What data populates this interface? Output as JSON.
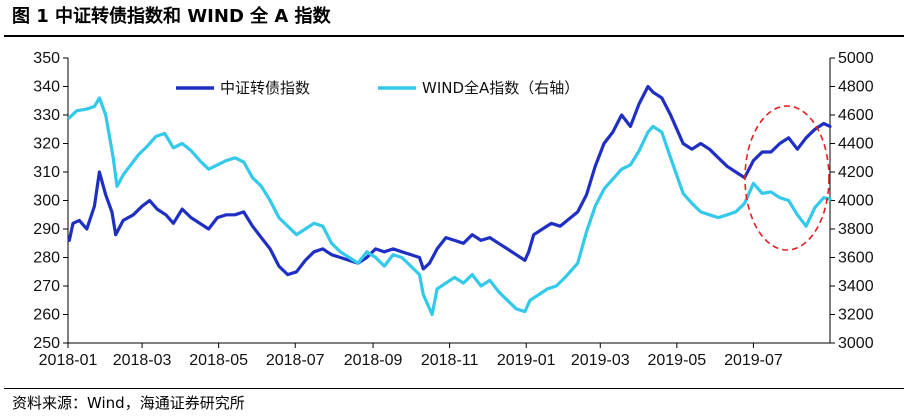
{
  "figure_title": "图 1  中证转债指数和 WIND 全 A 指数",
  "source_note": "资料来源：Wind，海通证券研究所",
  "chart_data": {
    "type": "line",
    "title": "图 1  中证转债指数和 WIND 全 A 指数",
    "x_range": [
      "2018-01-01",
      "2019-08-31"
    ],
    "x_ticks": [
      "2018-01",
      "2018-03",
      "2018-05",
      "2018-07",
      "2018-09",
      "2018-11",
      "2019-01",
      "2019-03",
      "2019-05",
      "2019-07"
    ],
    "y_left": {
      "range": [
        250,
        350
      ],
      "ticks": [
        250,
        260,
        270,
        280,
        290,
        300,
        310,
        320,
        330,
        340,
        350
      ]
    },
    "y_right": {
      "range": [
        3000,
        5000
      ],
      "ticks": [
        3000,
        3200,
        3400,
        3600,
        3800,
        4000,
        4200,
        4400,
        4600,
        4800,
        5000
      ]
    },
    "grid": false,
    "legend_position": "top",
    "annotation": "red dashed ellipse around 2019-07 to 2019-08",
    "series": [
      {
        "name": "中证转债指数",
        "axis": "left",
        "color": "#1f2fc4",
        "points": [
          [
            "2018-01-02",
            286
          ],
          [
            "2018-01-05",
            292
          ],
          [
            "2018-01-10",
            293
          ],
          [
            "2018-01-16",
            290
          ],
          [
            "2018-01-22",
            298
          ],
          [
            "2018-01-26",
            310
          ],
          [
            "2018-01-31",
            302
          ],
          [
            "2018-02-05",
            296
          ],
          [
            "2018-02-08",
            288
          ],
          [
            "2018-02-14",
            293
          ],
          [
            "2018-02-22",
            295
          ],
          [
            "2018-03-01",
            298
          ],
          [
            "2018-03-07",
            300
          ],
          [
            "2018-03-13",
            297
          ],
          [
            "2018-03-20",
            295
          ],
          [
            "2018-03-26",
            292
          ],
          [
            "2018-04-02",
            297
          ],
          [
            "2018-04-09",
            294
          ],
          [
            "2018-04-16",
            292
          ],
          [
            "2018-04-23",
            290
          ],
          [
            "2018-04-30",
            294
          ],
          [
            "2018-05-07",
            295
          ],
          [
            "2018-05-14",
            295
          ],
          [
            "2018-05-21",
            296
          ],
          [
            "2018-05-28",
            291
          ],
          [
            "2018-06-04",
            287
          ],
          [
            "2018-06-11",
            283
          ],
          [
            "2018-06-18",
            277
          ],
          [
            "2018-06-25",
            274
          ],
          [
            "2018-07-02",
            275
          ],
          [
            "2018-07-09",
            279
          ],
          [
            "2018-07-16",
            282
          ],
          [
            "2018-07-23",
            283
          ],
          [
            "2018-07-30",
            281
          ],
          [
            "2018-08-06",
            280
          ],
          [
            "2018-08-13",
            279
          ],
          [
            "2018-08-20",
            278
          ],
          [
            "2018-08-27",
            280
          ],
          [
            "2018-09-03",
            283
          ],
          [
            "2018-09-10",
            282
          ],
          [
            "2018-09-17",
            283
          ],
          [
            "2018-09-24",
            282
          ],
          [
            "2018-10-08",
            280
          ],
          [
            "2018-10-11",
            276
          ],
          [
            "2018-10-16",
            278
          ],
          [
            "2018-10-22",
            283
          ],
          [
            "2018-10-29",
            287
          ],
          [
            "2018-11-05",
            286
          ],
          [
            "2018-11-12",
            285
          ],
          [
            "2018-11-19",
            288
          ],
          [
            "2018-11-26",
            286
          ],
          [
            "2018-12-03",
            287
          ],
          [
            "2018-12-10",
            285
          ],
          [
            "2018-12-17",
            283
          ],
          [
            "2018-12-24",
            281
          ],
          [
            "2018-12-31",
            279
          ],
          [
            "2019-01-03",
            282
          ],
          [
            "2019-01-07",
            288
          ],
          [
            "2019-01-14",
            290
          ],
          [
            "2019-01-21",
            292
          ],
          [
            "2019-01-28",
            291
          ],
          [
            "2019-02-11",
            296
          ],
          [
            "2019-02-18",
            302
          ],
          [
            "2019-02-25",
            312
          ],
          [
            "2019-03-04",
            320
          ],
          [
            "2019-03-11",
            324
          ],
          [
            "2019-03-18",
            330
          ],
          [
            "2019-03-25",
            326
          ],
          [
            "2019-04-01",
            334
          ],
          [
            "2019-04-08",
            340
          ],
          [
            "2019-04-12",
            338
          ],
          [
            "2019-04-19",
            336
          ],
          [
            "2019-04-26",
            330
          ],
          [
            "2019-05-06",
            320
          ],
          [
            "2019-05-13",
            318
          ],
          [
            "2019-05-20",
            320
          ],
          [
            "2019-05-27",
            318
          ],
          [
            "2019-06-03",
            315
          ],
          [
            "2019-06-10",
            312
          ],
          [
            "2019-06-17",
            310
          ],
          [
            "2019-06-24",
            308
          ],
          [
            "2019-07-01",
            314
          ],
          [
            "2019-07-08",
            317
          ],
          [
            "2019-07-15",
            317
          ],
          [
            "2019-07-22",
            320
          ],
          [
            "2019-07-29",
            322
          ],
          [
            "2019-08-05",
            318
          ],
          [
            "2019-08-12",
            322
          ],
          [
            "2019-08-19",
            325
          ],
          [
            "2019-08-26",
            327
          ],
          [
            "2019-08-31",
            326
          ]
        ]
      },
      {
        "name": "WIND全A指数（右轴）",
        "axis": "right",
        "color": "#33c9ea",
        "points": [
          [
            "2018-01-02",
            4580
          ],
          [
            "2018-01-08",
            4630
          ],
          [
            "2018-01-15",
            4640
          ],
          [
            "2018-01-22",
            4660
          ],
          [
            "2018-01-26",
            4720
          ],
          [
            "2018-01-31",
            4600
          ],
          [
            "2018-02-06",
            4300
          ],
          [
            "2018-02-09",
            4100
          ],
          [
            "2018-02-14",
            4180
          ],
          [
            "2018-02-26",
            4320
          ],
          [
            "2018-03-05",
            4380
          ],
          [
            "2018-03-12",
            4450
          ],
          [
            "2018-03-19",
            4470
          ],
          [
            "2018-03-26",
            4370
          ],
          [
            "2018-04-02",
            4400
          ],
          [
            "2018-04-09",
            4350
          ],
          [
            "2018-04-16",
            4280
          ],
          [
            "2018-04-23",
            4220
          ],
          [
            "2018-04-30",
            4250
          ],
          [
            "2018-05-07",
            4280
          ],
          [
            "2018-05-14",
            4300
          ],
          [
            "2018-05-21",
            4270
          ],
          [
            "2018-05-28",
            4160
          ],
          [
            "2018-06-04",
            4100
          ],
          [
            "2018-06-11",
            4000
          ],
          [
            "2018-06-18",
            3880
          ],
          [
            "2018-06-25",
            3820
          ],
          [
            "2018-07-02",
            3760
          ],
          [
            "2018-07-09",
            3800
          ],
          [
            "2018-07-16",
            3840
          ],
          [
            "2018-07-23",
            3820
          ],
          [
            "2018-07-30",
            3700
          ],
          [
            "2018-08-06",
            3640
          ],
          [
            "2018-08-13",
            3600
          ],
          [
            "2018-08-20",
            3560
          ],
          [
            "2018-08-27",
            3640
          ],
          [
            "2018-09-03",
            3600
          ],
          [
            "2018-09-10",
            3540
          ],
          [
            "2018-09-17",
            3620
          ],
          [
            "2018-09-24",
            3600
          ],
          [
            "2018-10-08",
            3480
          ],
          [
            "2018-10-11",
            3340
          ],
          [
            "2018-10-18",
            3200
          ],
          [
            "2018-10-22",
            3380
          ],
          [
            "2018-10-29",
            3420
          ],
          [
            "2018-11-05",
            3460
          ],
          [
            "2018-11-12",
            3420
          ],
          [
            "2018-11-19",
            3480
          ],
          [
            "2018-11-26",
            3400
          ],
          [
            "2018-12-03",
            3440
          ],
          [
            "2018-12-10",
            3360
          ],
          [
            "2018-12-17",
            3300
          ],
          [
            "2018-12-24",
            3240
          ],
          [
            "2018-12-31",
            3220
          ],
          [
            "2019-01-04",
            3300
          ],
          [
            "2019-01-11",
            3340
          ],
          [
            "2019-01-18",
            3380
          ],
          [
            "2019-01-25",
            3400
          ],
          [
            "2019-02-01",
            3460
          ],
          [
            "2019-02-11",
            3560
          ],
          [
            "2019-02-18",
            3780
          ],
          [
            "2019-02-25",
            3960
          ],
          [
            "2019-03-04",
            4080
          ],
          [
            "2019-03-11",
            4150
          ],
          [
            "2019-03-18",
            4220
          ],
          [
            "2019-03-25",
            4250
          ],
          [
            "2019-04-01",
            4350
          ],
          [
            "2019-04-08",
            4480
          ],
          [
            "2019-04-12",
            4520
          ],
          [
            "2019-04-19",
            4480
          ],
          [
            "2019-04-26",
            4300
          ],
          [
            "2019-05-06",
            4050
          ],
          [
            "2019-05-13",
            3980
          ],
          [
            "2019-05-20",
            3920
          ],
          [
            "2019-05-27",
            3900
          ],
          [
            "2019-06-03",
            3880
          ],
          [
            "2019-06-10",
            3900
          ],
          [
            "2019-06-17",
            3920
          ],
          [
            "2019-06-24",
            3980
          ],
          [
            "2019-07-01",
            4120
          ],
          [
            "2019-07-08",
            4050
          ],
          [
            "2019-07-15",
            4060
          ],
          [
            "2019-07-22",
            4020
          ],
          [
            "2019-07-29",
            4000
          ],
          [
            "2019-08-05",
            3900
          ],
          [
            "2019-08-12",
            3820
          ],
          [
            "2019-08-19",
            3950
          ],
          [
            "2019-08-26",
            4020
          ],
          [
            "2019-08-31",
            4010
          ]
        ]
      }
    ]
  }
}
